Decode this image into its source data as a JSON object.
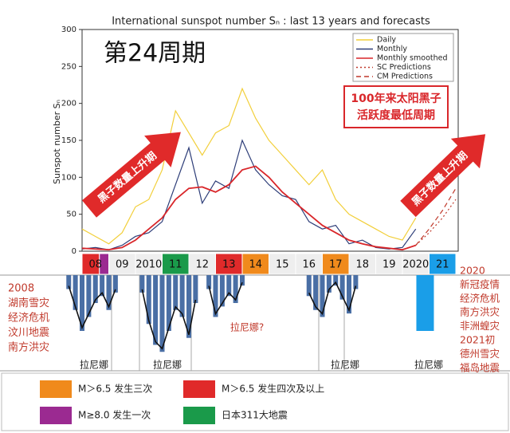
{
  "chart_data": [
    {
      "type": "line",
      "title": "International sunspot number Sₙ : last 13 years and forecasts",
      "y_label": "Sunspot number Sₙ",
      "xlim": [
        2008,
        2022
      ],
      "ylim": [
        0,
        300
      ],
      "yticks": [
        0,
        50,
        100,
        150,
        200,
        250,
        300
      ],
      "legend": "upper right",
      "x": [
        2008.0,
        2008.5,
        2009.0,
        2009.5,
        2010.0,
        2010.5,
        2011.0,
        2011.5,
        2012.0,
        2012.5,
        2013.0,
        2013.5,
        2014.0,
        2014.5,
        2015.0,
        2015.5,
        2016.0,
        2016.5,
        2017.0,
        2017.5,
        2018.0,
        2018.5,
        2019.0,
        2019.5,
        2020.0,
        2020.5
      ],
      "series": [
        {
          "name": "Daily",
          "color": "#f2cf3a",
          "dash": "solid",
          "values": [
            30,
            20,
            10,
            25,
            60,
            70,
            110,
            190,
            160,
            130,
            160,
            170,
            220,
            180,
            150,
            130,
            110,
            90,
            110,
            70,
            50,
            40,
            30,
            20,
            15,
            45
          ]
        },
        {
          "name": "Monthly",
          "color": "#2d3d78",
          "dash": "solid",
          "values": [
            3,
            5,
            2,
            8,
            20,
            25,
            40,
            90,
            140,
            65,
            95,
            85,
            150,
            110,
            90,
            75,
            70,
            40,
            30,
            35,
            10,
            15,
            5,
            3,
            5,
            30
          ]
        },
        {
          "name": "Monthly smoothed",
          "color": "#d9262a",
          "dash": "solid",
          "values": [
            4,
            3,
            2,
            5,
            15,
            30,
            45,
            70,
            85,
            87,
            80,
            90,
            110,
            115,
            100,
            80,
            65,
            50,
            35,
            25,
            15,
            10,
            6,
            4,
            2,
            8
          ]
        },
        {
          "name": "SC Predictions",
          "color": "#c0392b",
          "dash": "dotted",
          "x": [
            2020.5,
            2021.0,
            2021.5,
            2022.0
          ],
          "values": [
            8,
            25,
            45,
            70
          ]
        },
        {
          "name": "CM Predictions",
          "color": "#c0392b",
          "dash": "dashed",
          "x": [
            2020.5,
            2021.0,
            2021.5,
            2022.0
          ],
          "values": [
            8,
            30,
            55,
            85
          ]
        }
      ],
      "cycle_label": "第24周期",
      "low_cycle_note": [
        "100年来太阳黑子",
        "活跃度最低周期"
      ],
      "arrow_labels": [
        "黑子数量上升期",
        "黑子数量上升期"
      ]
    },
    {
      "type": "bar",
      "xlim": [
        2005,
        2024
      ],
      "ylim": [
        -2.4,
        0
      ],
      "year_band": {
        "labels": [
          "08",
          "09",
          "2010",
          "11",
          "12",
          "13",
          "14",
          "15",
          "16",
          "17",
          "18",
          "19",
          "2020",
          "21"
        ],
        "colors": [
          [
            "#e02a2a",
            "#9b2a91"
          ],
          "#eeeeee",
          "#eeeeee",
          "#1a9a4a",
          "#eeeeee",
          "#e02a2a",
          "#f08a1c",
          "#eeeeee",
          "#eeeeee",
          "#f08a1c",
          "#eeeeee",
          "#eeeeee",
          "#eeeeee",
          "#1a9ee8"
        ]
      },
      "series": [
        {
          "color": "#4a6fa5",
          "x": [
            2007.5,
            2007.75,
            2008.0,
            2008.25,
            2008.5,
            2008.75,
            2009.0,
            2009.25,
            2010.25,
            2010.5,
            2010.75,
            2011.0,
            2011.25,
            2011.5,
            2011.75,
            2012.0,
            2012.25,
            2012.75,
            2013.0,
            2013.25,
            2013.5,
            2013.75,
            2014.0,
            2016.5,
            2016.75,
            2017.0,
            2017.25,
            2017.5,
            2017.75,
            2018.0,
            2018.25
          ],
          "values": [
            -0.4,
            -1.0,
            -1.6,
            -1.2,
            -0.8,
            -0.6,
            -1.0,
            -0.5,
            -0.5,
            -1.4,
            -2.0,
            -2.2,
            -1.6,
            -1.0,
            -1.2,
            -1.8,
            -0.8,
            -0.4,
            -1.2,
            -0.9,
            -0.6,
            -0.8,
            -0.3,
            -0.6,
            -1.0,
            -1.2,
            -0.5,
            -0.3,
            -0.7,
            -1.1,
            -0.4
          ]
        },
        {
          "color": "#1a9ee8",
          "x": [
            2020.85
          ],
          "values": [
            -1.6
          ]
        }
      ],
      "la_nina_labels": [
        "拉尼娜",
        "拉尼娜",
        "拉尼娜",
        "拉尼娜"
      ],
      "la_nina_question": "拉尼娜?",
      "notes_left": [
        "2008",
        "湖南雪灾",
        "经济危机",
        "汶川地震",
        "南方洪灾"
      ],
      "notes_right": [
        "2020",
        "新冠疫情",
        "经济危机",
        "南方洪灾",
        "非洲蝗灾",
        "2021初",
        "德州雪灾",
        "福岛地震"
      ]
    }
  ],
  "key": [
    {
      "color": "#f08a1c",
      "label": "M＞6.5 发生三次"
    },
    {
      "color": "#e02a2a",
      "label": "M＞6.5 发生四次及以上"
    },
    {
      "color": "#9b2a91",
      "label": "M≥8.0 发生一次"
    },
    {
      "color": "#1a9a4a",
      "label": "日本311大地震"
    }
  ]
}
